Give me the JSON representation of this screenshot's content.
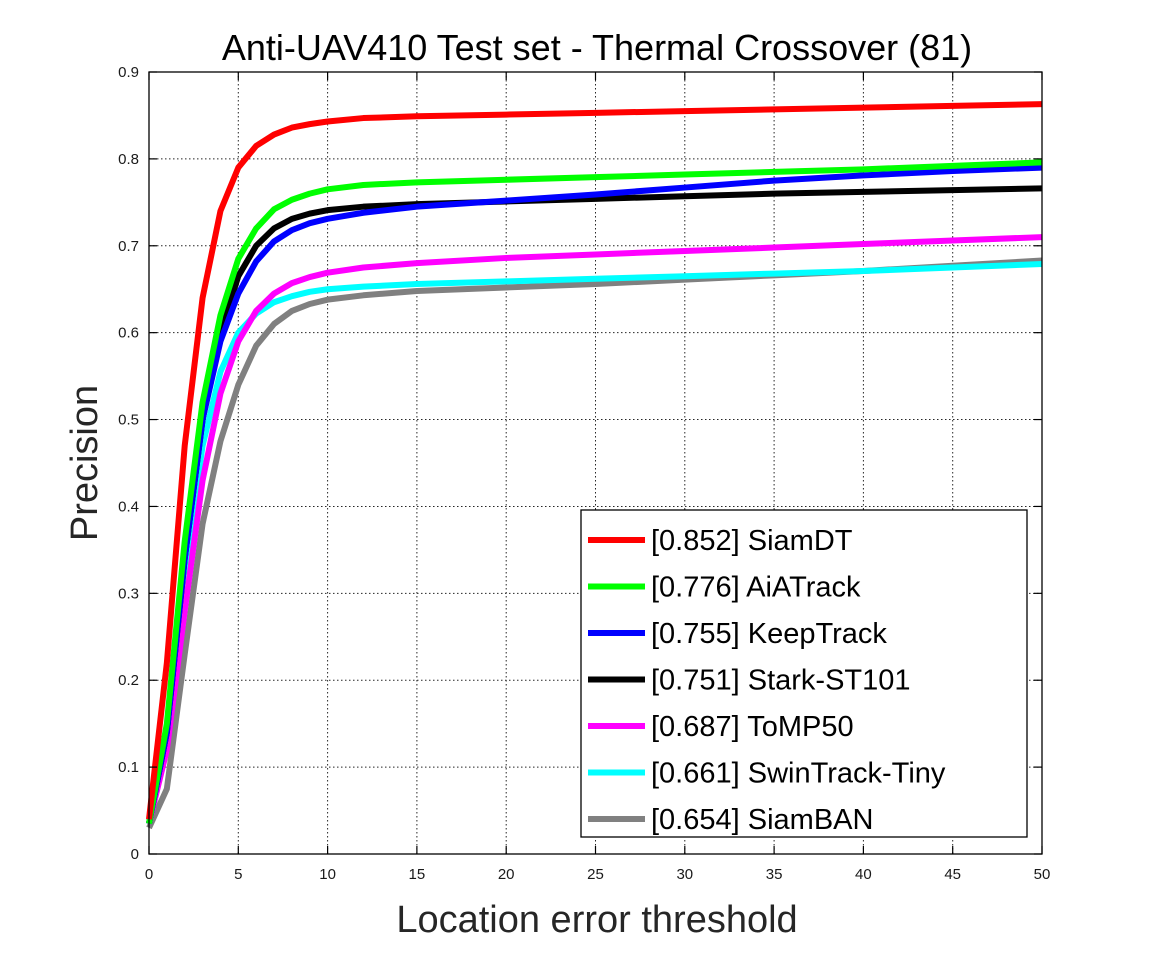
{
  "chart_data": {
    "type": "line",
    "title": "Anti-UAV410 Test set - Thermal Crossover (81)",
    "xlabel": "Location error threshold",
    "ylabel": "Precision",
    "xlim": [
      0,
      50
    ],
    "ylim": [
      0,
      0.9
    ],
    "xticks": [
      "0",
      "5",
      "10",
      "15",
      "20",
      "25",
      "30",
      "35",
      "40",
      "45",
      "50"
    ],
    "yticks": [
      "0",
      "0.1",
      "0.2",
      "0.3",
      "0.4",
      "0.5",
      "0.6",
      "0.7",
      "0.8",
      "0.9"
    ],
    "grid": true,
    "legend_position": "bottom-right",
    "x": [
      0,
      1,
      2,
      3,
      4,
      5,
      6,
      7,
      8,
      9,
      10,
      12,
      15,
      20,
      25,
      30,
      35,
      40,
      45,
      50
    ],
    "series": [
      {
        "name": "[0.852] SiamDT",
        "color": "#ff0000",
        "values": [
          0.04,
          0.22,
          0.47,
          0.64,
          0.74,
          0.79,
          0.815,
          0.828,
          0.836,
          0.84,
          0.843,
          0.847,
          0.849,
          0.851,
          0.853,
          0.855,
          0.857,
          0.859,
          0.861,
          0.863
        ]
      },
      {
        "name": "[0.776] AiATrack",
        "color": "#00ff00",
        "values": [
          0.035,
          0.15,
          0.36,
          0.52,
          0.62,
          0.685,
          0.72,
          0.742,
          0.753,
          0.76,
          0.765,
          0.77,
          0.773,
          0.776,
          0.779,
          0.782,
          0.785,
          0.788,
          0.792,
          0.796
        ]
      },
      {
        "name": "[0.755] KeepTrack",
        "color": "#0000ff",
        "values": [
          0.035,
          0.14,
          0.34,
          0.5,
          0.59,
          0.645,
          0.682,
          0.705,
          0.718,
          0.726,
          0.731,
          0.738,
          0.745,
          0.752,
          0.759,
          0.767,
          0.775,
          0.781,
          0.786,
          0.79
        ]
      },
      {
        "name": "[0.751] Stark-ST101",
        "color": "#000000",
        "values": [
          0.035,
          0.14,
          0.34,
          0.5,
          0.6,
          0.665,
          0.7,
          0.72,
          0.731,
          0.737,
          0.741,
          0.745,
          0.748,
          0.751,
          0.754,
          0.757,
          0.76,
          0.762,
          0.764,
          0.766
        ]
      },
      {
        "name": "[0.687] ToMP50",
        "color": "#ff00ff",
        "values": [
          0.035,
          0.12,
          0.28,
          0.43,
          0.53,
          0.59,
          0.625,
          0.645,
          0.657,
          0.664,
          0.669,
          0.675,
          0.68,
          0.686,
          0.69,
          0.694,
          0.698,
          0.702,
          0.706,
          0.71
        ]
      },
      {
        "name": "[0.661] SwinTrack-Tiny",
        "color": "#00ffff",
        "values": [
          0.035,
          0.13,
          0.32,
          0.47,
          0.555,
          0.6,
          0.622,
          0.635,
          0.642,
          0.647,
          0.65,
          0.653,
          0.656,
          0.659,
          0.662,
          0.665,
          0.668,
          0.671,
          0.675,
          0.679
        ]
      },
      {
        "name": "[0.654] SiamBAN",
        "color": "#808080",
        "values": [
          0.03,
          0.075,
          0.23,
          0.38,
          0.475,
          0.54,
          0.585,
          0.61,
          0.625,
          0.633,
          0.638,
          0.643,
          0.648,
          0.652,
          0.656,
          0.661,
          0.666,
          0.671,
          0.677,
          0.683
        ]
      }
    ]
  }
}
